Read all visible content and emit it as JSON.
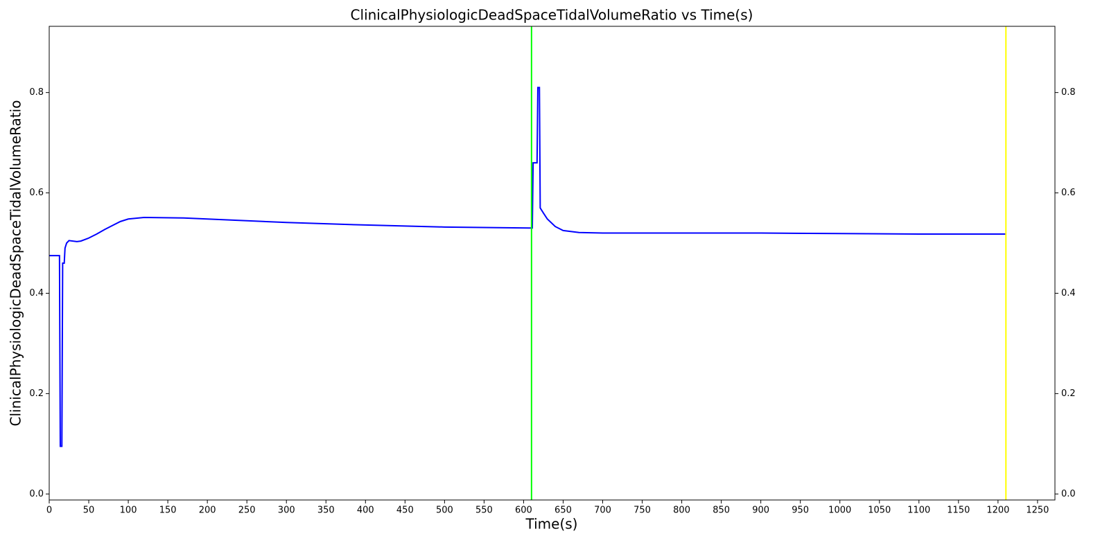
{
  "chart_data": {
    "type": "line",
    "title": "ClinicalPhysiologicDeadSpaceTidalVolumeRatio vs Time(s)",
    "x_label": "Time(s)",
    "y_label": "ClinicalPhysiologicDeadSpaceTidalVolumeRatio",
    "x": [
      0,
      13,
      14,
      16,
      17,
      19,
      20,
      22,
      25,
      35,
      40,
      50,
      60,
      70,
      80,
      90,
      100,
      120,
      170,
      200,
      300,
      400,
      500,
      610,
      611,
      612,
      617,
      618,
      620,
      621,
      625,
      630,
      640,
      650,
      670,
      700,
      800,
      900,
      1000,
      1100,
      1210
    ],
    "series": [
      {
        "name": "ClinicalPhysiologicDeadSpaceTidalVolumeRatio",
        "color": "#0000ff",
        "values": [
          0.475,
          0.475,
          0.095,
          0.095,
          0.46,
          0.46,
          0.49,
          0.5,
          0.505,
          0.503,
          0.504,
          0.51,
          0.518,
          0.527,
          0.535,
          0.543,
          0.548,
          0.551,
          0.55,
          0.548,
          0.541,
          0.536,
          0.532,
          0.53,
          0.53,
          0.66,
          0.66,
          0.81,
          0.81,
          0.57,
          0.56,
          0.548,
          0.533,
          0.525,
          0.521,
          0.52,
          0.52,
          0.52,
          0.519,
          0.518,
          0.518
        ]
      }
    ],
    "vlines": [
      {
        "x": 610,
        "color": "#00ff00"
      },
      {
        "x": 1210,
        "color": "#ffff00"
      }
    ],
    "xlim": [
      0,
      1272
    ],
    "ylim": [
      -0.012,
      0.932
    ],
    "xticks": [
      0,
      50,
      100,
      150,
      200,
      250,
      300,
      350,
      400,
      450,
      500,
      550,
      600,
      650,
      700,
      750,
      800,
      850,
      900,
      950,
      1000,
      1050,
      1100,
      1150,
      1200,
      1250
    ],
    "yticks": [
      {
        "value": 0,
        "label": "0.0"
      },
      0.2,
      0.4,
      0.6,
      0.8
    ],
    "right_axis_ticks": true
  }
}
